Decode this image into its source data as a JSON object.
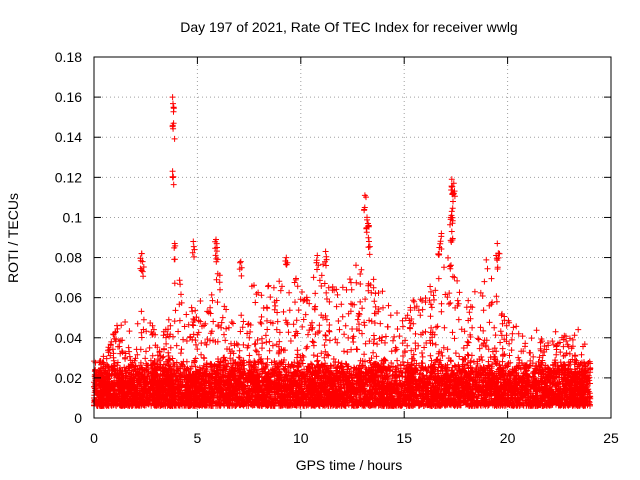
{
  "chart_data": {
    "type": "scatter",
    "title": "Day 197 of 2021, Rate Of TEC Index for receiver wwlg",
    "xlabel": "GPS time / hours",
    "ylabel": "ROTI / TECUs",
    "xlim": [
      0,
      25
    ],
    "ylim": [
      0,
      0.18
    ],
    "xticks": [
      0,
      5,
      10,
      15,
      20,
      25
    ],
    "xtick_labels": [
      "0",
      "5",
      "10",
      "15",
      "20",
      "25"
    ],
    "yticks": [
      0,
      0.02,
      0.04,
      0.06,
      0.08,
      0.1,
      0.12,
      0.14,
      0.16,
      0.18
    ],
    "ytick_labels": [
      "0",
      "0.02",
      "0.04",
      "0.06",
      "0.08",
      "0.1",
      "0.12",
      "0.14",
      "0.16",
      "0.18"
    ],
    "grid": true,
    "marker": "+",
    "color": "#ff0000",
    "data_x_range": [
      0,
      24
    ],
    "bulk_band": [
      0.006,
      0.03
    ],
    "envelope": {
      "x": [
        0,
        0.5,
        1,
        1.5,
        2,
        2.5,
        3,
        3.5,
        4,
        4.5,
        5,
        5.5,
        6,
        6.5,
        7,
        7.5,
        8,
        8.5,
        9,
        9.5,
        10,
        10.5,
        11,
        11.5,
        12,
        12.5,
        13,
        13.5,
        14,
        14.5,
        15,
        15.5,
        16,
        16.5,
        17,
        17.5,
        18,
        18.5,
        19,
        19.5,
        20,
        20.5,
        21,
        21.5,
        22,
        22.5,
        23,
        23.5,
        24
      ],
      "max": [
        0.025,
        0.032,
        0.045,
        0.05,
        0.042,
        0.068,
        0.04,
        0.045,
        0.078,
        0.052,
        0.06,
        0.055,
        0.088,
        0.05,
        0.048,
        0.07,
        0.065,
        0.075,
        0.07,
        0.068,
        0.072,
        0.07,
        0.08,
        0.065,
        0.07,
        0.075,
        0.09,
        0.07,
        0.065,
        0.055,
        0.05,
        0.06,
        0.07,
        0.065,
        0.085,
        0.07,
        0.06,
        0.065,
        0.085,
        0.06,
        0.05,
        0.045,
        0.04,
        0.045,
        0.04,
        0.045,
        0.04,
        0.045,
        0.03
      ]
    },
    "spikes": [
      {
        "x": 3.8,
        "y": 0.16
      },
      {
        "x": 3.85,
        "y": 0.147
      },
      {
        "x": 3.8,
        "y": 0.123
      },
      {
        "x": 2.3,
        "y": 0.082
      },
      {
        "x": 2.35,
        "y": 0.078
      },
      {
        "x": 3.9,
        "y": 0.087
      },
      {
        "x": 4.8,
        "y": 0.088
      },
      {
        "x": 5.9,
        "y": 0.089
      },
      {
        "x": 5.95,
        "y": 0.085
      },
      {
        "x": 7.1,
        "y": 0.078
      },
      {
        "x": 9.3,
        "y": 0.08
      },
      {
        "x": 10.8,
        "y": 0.081
      },
      {
        "x": 11.2,
        "y": 0.083
      },
      {
        "x": 13.1,
        "y": 0.111
      },
      {
        "x": 13.2,
        "y": 0.1
      },
      {
        "x": 13.25,
        "y": 0.097
      },
      {
        "x": 13.3,
        "y": 0.088
      },
      {
        "x": 16.7,
        "y": 0.085
      },
      {
        "x": 16.8,
        "y": 0.092
      },
      {
        "x": 17.3,
        "y": 0.119
      },
      {
        "x": 17.4,
        "y": 0.117
      },
      {
        "x": 17.35,
        "y": 0.112
      },
      {
        "x": 17.3,
        "y": 0.103
      },
      {
        "x": 17.25,
        "y": 0.1
      },
      {
        "x": 17.3,
        "y": 0.093
      },
      {
        "x": 19.5,
        "y": 0.087
      },
      {
        "x": 19.55,
        "y": 0.082
      }
    ]
  }
}
